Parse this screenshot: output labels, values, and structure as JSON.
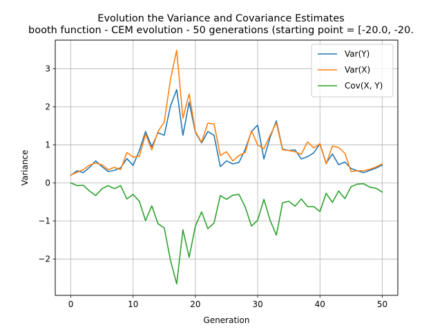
{
  "chart_data": {
    "type": "line",
    "title_line1": "Evolution the Variance and Covariance Estimates",
    "title_line2": "booth function - CEM evolution - 50 generations (starting point = [-20.0, -20.",
    "xlabel": "Generation",
    "ylabel": "Variance",
    "xlim": [
      -2.5,
      52.5
    ],
    "ylim": [
      -2.95,
      3.75
    ],
    "xticks": [
      0,
      10,
      20,
      30,
      40,
      50
    ],
    "yticks": [
      -2,
      -1,
      0,
      1,
      2,
      3
    ],
    "grid": true,
    "legend_position": "top-right",
    "x": [
      0,
      1,
      2,
      3,
      4,
      5,
      6,
      7,
      8,
      9,
      10,
      11,
      12,
      13,
      14,
      15,
      16,
      17,
      18,
      19,
      20,
      21,
      22,
      23,
      24,
      25,
      26,
      27,
      28,
      29,
      30,
      31,
      32,
      33,
      34,
      35,
      36,
      37,
      38,
      39,
      40,
      41,
      42,
      43,
      44,
      45,
      46,
      47,
      48,
      49,
      50
    ],
    "series": [
      {
        "name": "Var(Y)",
        "color": "#1f77b4",
        "values": [
          0.2,
          0.32,
          0.27,
          0.41,
          0.58,
          0.43,
          0.3,
          0.33,
          0.4,
          0.64,
          0.46,
          0.85,
          1.35,
          0.95,
          1.32,
          1.25,
          2.02,
          2.45,
          1.25,
          2.12,
          1.33,
          1.05,
          1.35,
          1.25,
          0.43,
          0.58,
          0.5,
          0.54,
          0.88,
          1.35,
          1.52,
          0.63,
          1.2,
          1.63,
          0.89,
          0.85,
          0.87,
          0.63,
          0.69,
          0.79,
          1.03,
          0.52,
          0.76,
          0.48,
          0.55,
          0.38,
          0.32,
          0.27,
          0.33,
          0.39,
          0.47
        ]
      },
      {
        "name": "Var(X)",
        "color": "#ff7f0e",
        "values": [
          0.21,
          0.28,
          0.35,
          0.47,
          0.52,
          0.48,
          0.35,
          0.41,
          0.35,
          0.8,
          0.68,
          0.7,
          1.28,
          0.87,
          1.35,
          1.6,
          2.72,
          3.48,
          1.7,
          2.34,
          1.35,
          1.07,
          1.57,
          1.55,
          0.72,
          0.82,
          0.58,
          0.72,
          0.8,
          1.37,
          1.0,
          0.9,
          1.25,
          1.58,
          0.87,
          0.85,
          0.82,
          0.75,
          1.08,
          0.92,
          1.03,
          0.5,
          0.97,
          0.93,
          0.78,
          0.3,
          0.32,
          0.32,
          0.36,
          0.42,
          0.5
        ]
      },
      {
        "name": "Cov(X, Y)",
        "color": "#2ca02c",
        "values": [
          0.0,
          -0.07,
          -0.06,
          -0.21,
          -0.33,
          -0.15,
          -0.07,
          -0.15,
          -0.07,
          -0.42,
          -0.3,
          -0.48,
          -0.99,
          -0.6,
          -1.07,
          -1.18,
          -2.03,
          -2.65,
          -1.23,
          -1.95,
          -1.13,
          -0.76,
          -1.2,
          -1.05,
          -0.33,
          -0.43,
          -0.32,
          -0.3,
          -0.63,
          -1.13,
          -0.98,
          -0.43,
          -0.98,
          -1.37,
          -0.52,
          -0.48,
          -0.61,
          -0.42,
          -0.62,
          -0.62,
          -0.75,
          -0.27,
          -0.51,
          -0.21,
          -0.41,
          -0.1,
          -0.03,
          -0.02,
          -0.11,
          -0.14,
          -0.24
        ]
      }
    ]
  }
}
